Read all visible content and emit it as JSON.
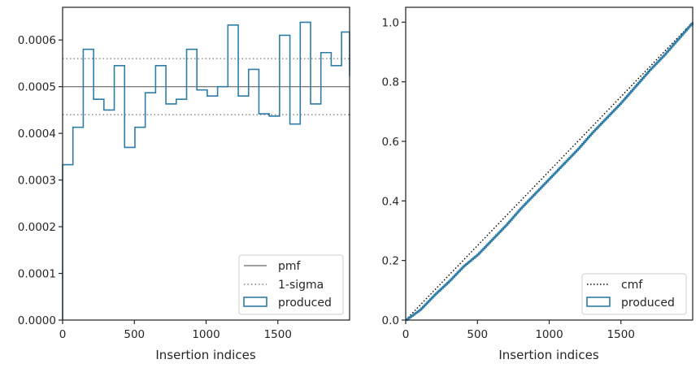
{
  "colors": {
    "produced": "#2f7ca7",
    "pmf": "#808080",
    "sigma": "#808080",
    "cmf": "#000000",
    "axis": "#262626"
  },
  "chart_data": [
    {
      "type": "line",
      "chart_style": "step-histogram",
      "xlabel": "Insertion indices",
      "ylabel": "",
      "title": "",
      "xlim": [
        0,
        2000
      ],
      "ylim": [
        0,
        0.00067
      ],
      "xticks": [
        0,
        500,
        1000,
        1500
      ],
      "xtick_labels": [
        "0",
        "500",
        "1000",
        "1500"
      ],
      "yticks": [
        0,
        0.0001,
        0.0002,
        0.0003,
        0.0004,
        0.0005,
        0.0006
      ],
      "ytick_labels": [
        "0.0000",
        "0.0001",
        "0.0002",
        "0.0003",
        "0.0004",
        "0.0005",
        "0.0006"
      ],
      "legend_position": "lower-right",
      "legend": [
        "pmf",
        "1-sigma",
        "produced"
      ],
      "pmf_value": 0.0005,
      "sigma_band": [
        0.00044,
        0.00056
      ],
      "bin_edges": [
        0,
        72,
        144,
        216,
        288,
        360,
        432,
        504,
        576,
        648,
        720,
        792,
        864,
        936,
        1008,
        1080,
        1152,
        1224,
        1296,
        1368,
        1440,
        1512,
        1584,
        1656,
        1728,
        1800,
        1872,
        1944,
        2000
      ],
      "series": [
        {
          "name": "produced",
          "values": [
            0.000333,
            0.000413,
            0.00058,
            0.000473,
            0.00045,
            0.000545,
            0.00037,
            0.000413,
            0.000487,
            0.000545,
            0.000463,
            0.000473,
            0.00058,
            0.000493,
            0.00048,
            0.0005,
            0.000632,
            0.00048,
            0.000537,
            0.000442,
            0.000437,
            0.00061,
            0.00042,
            0.000638,
            0.000463,
            0.000573,
            0.000545,
            0.000617,
            0.000523
          ]
        }
      ]
    },
    {
      "type": "line",
      "xlabel": "Insertion indices",
      "ylabel": "",
      "title": "",
      "xlim": [
        0,
        2000
      ],
      "ylim": [
        0,
        1.05
      ],
      "xticks": [
        0,
        500,
        1000,
        1500
      ],
      "xtick_labels": [
        "0",
        "500",
        "1000",
        "1500"
      ],
      "yticks": [
        0,
        0.2,
        0.4,
        0.6,
        0.8,
        1.0
      ],
      "ytick_labels": [
        "0.0",
        "0.2",
        "0.4",
        "0.6",
        "0.8",
        "1.0"
      ],
      "legend_position": "lower-right",
      "legend": [
        "cmf",
        "produced"
      ],
      "series": [
        {
          "name": "cmf",
          "x": [
            0,
            2000
          ],
          "y": [
            0,
            1.0
          ]
        },
        {
          "name": "produced",
          "x": [
            0,
            100,
            200,
            300,
            400,
            500,
            600,
            700,
            800,
            900,
            1000,
            1100,
            1200,
            1300,
            1400,
            1500,
            1600,
            1700,
            1800,
            1900,
            2000
          ],
          "y": [
            0,
            0.035,
            0.085,
            0.13,
            0.18,
            0.22,
            0.27,
            0.32,
            0.375,
            0.425,
            0.475,
            0.525,
            0.575,
            0.63,
            0.68,
            0.73,
            0.785,
            0.84,
            0.89,
            0.945,
            1.0
          ]
        }
      ]
    }
  ]
}
